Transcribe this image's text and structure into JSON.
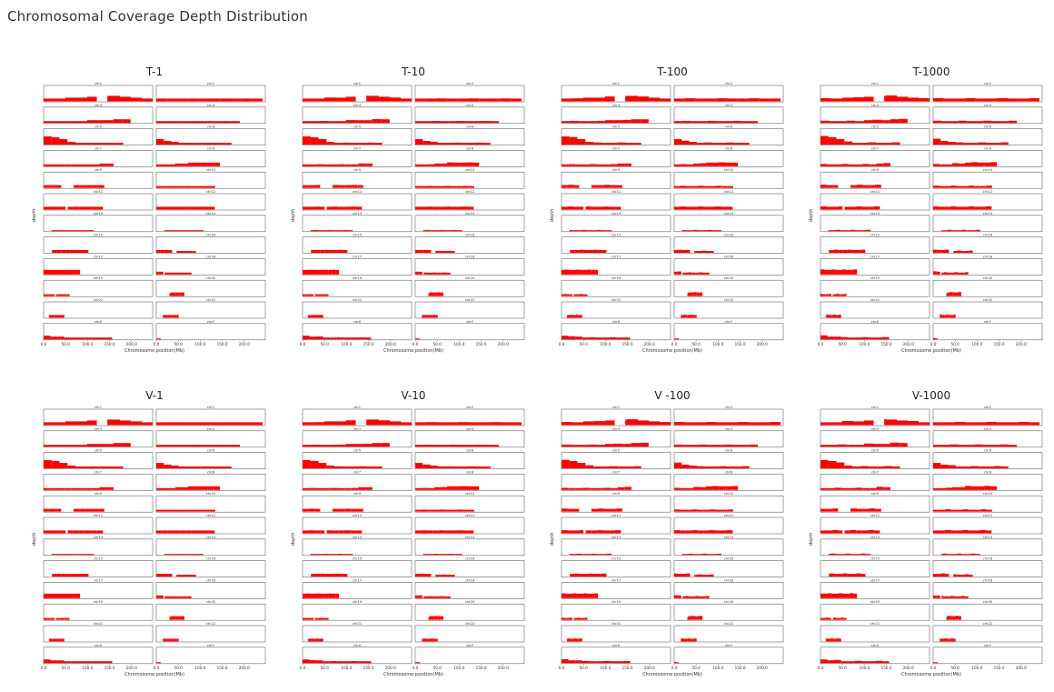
{
  "page": {
    "title": "Chromosomal Coverage Depth Distribution"
  },
  "shared": {
    "xlabel": "Chromosome position(Mb)",
    "ylabel": "depth",
    "x_ticks": [
      "0.0",
      "50.0",
      "100.0",
      "150.0",
      "200.0"
    ],
    "bar_color": "#ff0000"
  },
  "chart_data": {
    "type": "bar",
    "panels": [
      "T-1",
      "T-10",
      "T-100",
      "T-1000",
      "V-1",
      "V-10",
      "V -100",
      "V-1000"
    ],
    "chromosomes": [
      {
        "name": "chr1",
        "length": 248,
        "gaps": [
          [
            121,
            145
          ]
        ],
        "profile": [
          3,
          3,
          4,
          4,
          5,
          6,
          6,
          5,
          4,
          3
        ]
      },
      {
        "name": "chr2",
        "length": 242,
        "gaps": [],
        "profile": [
          3,
          3,
          3,
          3,
          3,
          3,
          3,
          3,
          3,
          3
        ]
      },
      {
        "name": "chr3",
        "length": 198,
        "gaps": [],
        "profile": [
          2,
          2,
          2,
          2,
          2,
          3,
          3,
          3,
          4,
          4
        ]
      },
      {
        "name": "chr4",
        "length": 190,
        "gaps": [],
        "profile": [
          2,
          2,
          2,
          2,
          2,
          2,
          2,
          2,
          2,
          2
        ]
      },
      {
        "name": "chr5",
        "length": 181,
        "gaps": [],
        "profile": [
          9,
          8,
          6,
          3,
          2,
          2,
          2,
          2,
          2,
          2
        ]
      },
      {
        "name": "chr6",
        "length": 171,
        "gaps": [],
        "profile": [
          6,
          4,
          3,
          2,
          2,
          2,
          2,
          2,
          2,
          2
        ]
      },
      {
        "name": "chr7",
        "length": 159,
        "gaps": [],
        "profile": [
          2,
          2,
          2,
          2,
          2,
          2,
          2,
          2,
          3,
          3
        ]
      },
      {
        "name": "chr8",
        "length": 145,
        "gaps": [],
        "profile": [
          2,
          2,
          2,
          3,
          3,
          4,
          4,
          4,
          4,
          4
        ]
      },
      {
        "name": "chr9",
        "length": 138,
        "gaps": [
          [
            40,
            68
          ]
        ],
        "profile": [
          3,
          3,
          3,
          3,
          3,
          3,
          3,
          3,
          3,
          3
        ]
      },
      {
        "name": "chr10",
        "length": 134,
        "gaps": [],
        "profile": [
          2,
          2,
          2,
          2,
          2,
          2,
          2,
          2,
          2,
          2
        ]
      },
      {
        "name": "chr11",
        "length": 135,
        "gaps": [
          [
            50,
            55
          ]
        ],
        "profile": [
          3,
          3,
          3,
          3,
          3,
          3,
          3,
          3,
          3,
          3
        ]
      },
      {
        "name": "chr12",
        "length": 133,
        "gaps": [],
        "profile": [
          3,
          3,
          3,
          3,
          3,
          3,
          3,
          3,
          3,
          3
        ]
      },
      {
        "name": "chr13",
        "length": 114,
        "gaps": [
          [
            0,
            18
          ]
        ],
        "profile": [
          1,
          1,
          1,
          1,
          1,
          1,
          1,
          1,
          1,
          1
        ]
      },
      {
        "name": "chr14",
        "length": 107,
        "gaps": [
          [
            0,
            18
          ]
        ],
        "profile": [
          1,
          1,
          1,
          1,
          1,
          1,
          1,
          1,
          1,
          1
        ]
      },
      {
        "name": "chr15",
        "length": 102,
        "gaps": [
          [
            0,
            19
          ]
        ],
        "profile": [
          3,
          3,
          3,
          3,
          3,
          3,
          3,
          3,
          3,
          3
        ]
      },
      {
        "name": "chr16",
        "length": 90,
        "gaps": [
          [
            36,
            46
          ]
        ],
        "profile": [
          3,
          3,
          3,
          3,
          2,
          2,
          2,
          2,
          2,
          2
        ]
      },
      {
        "name": "chr17",
        "length": 83,
        "gaps": [],
        "profile": [
          5,
          5,
          5,
          5,
          5,
          5,
          5,
          5,
          5,
          5
        ]
      },
      {
        "name": "chr18",
        "length": 80,
        "gaps": [
          [
            16,
            19
          ]
        ],
        "profile": [
          3,
          3,
          2,
          2,
          2,
          2,
          2,
          2,
          2,
          2
        ]
      },
      {
        "name": "chr19",
        "length": 59,
        "gaps": [
          [
            25,
            28
          ]
        ],
        "profile": [
          2,
          2,
          2,
          2,
          2,
          2,
          2,
          2,
          2,
          2
        ]
      },
      {
        "name": "chr20",
        "length": 64,
        "gaps": [
          [
            0,
            30
          ]
        ],
        "profile": [
          2,
          2,
          2,
          3,
          3,
          4,
          4,
          4,
          4,
          4
        ]
      },
      {
        "name": "chr21",
        "length": 47,
        "gaps": [
          [
            0,
            12
          ]
        ],
        "profile": [
          3,
          3,
          3,
          3,
          3,
          3,
          3,
          3,
          3,
          3
        ]
      },
      {
        "name": "chr22",
        "length": 51,
        "gaps": [
          [
            0,
            15
          ]
        ],
        "profile": [
          3,
          3,
          3,
          3,
          3,
          3,
          3,
          3,
          3,
          3
        ]
      },
      {
        "name": "chrX",
        "length": 156,
        "gaps": [],
        "profile": [
          4,
          3,
          3,
          2,
          2,
          2,
          2,
          2,
          2,
          2
        ]
      },
      {
        "name": "chrY",
        "length": 57,
        "gaps": [
          [
            10,
            57
          ]
        ],
        "profile": [
          1,
          1,
          1,
          1,
          1,
          1,
          1,
          1,
          1,
          1
        ]
      }
    ],
    "x_range_mb": [
      0,
      248
    ],
    "grid": false,
    "legend": "none"
  }
}
